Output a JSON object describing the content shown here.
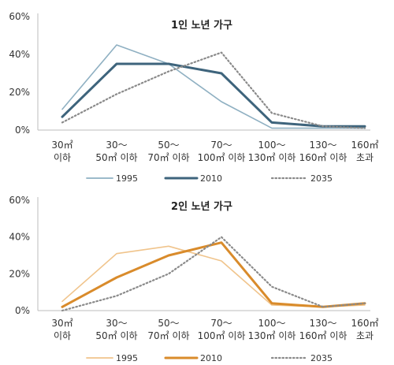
{
  "chart_data": [
    {
      "type": "line",
      "title": "1인 노년 가구",
      "categories": [
        [
          "30㎡",
          "이하"
        ],
        [
          "30～",
          "50㎡ 이하"
        ],
        [
          "50～",
          "70㎡ 이하"
        ],
        [
          "70～",
          "100㎡ 이하"
        ],
        [
          "100～",
          "130㎡ 이하"
        ],
        [
          "130～",
          "160㎡ 이하"
        ],
        [
          "160㎡",
          "초과"
        ]
      ],
      "ylim": [
        0,
        60
      ],
      "yticks": [
        "0%",
        "20%",
        "40%",
        "60%"
      ],
      "grid": false,
      "legend_position": "bottom",
      "series": [
        {
          "name": "1995",
          "values": [
            11,
            45,
            35,
            15,
            1,
            1,
            1
          ],
          "color": "#8fb0c2",
          "style": "solid"
        },
        {
          "name": "2010",
          "values": [
            7,
            35,
            35,
            30,
            4,
            2,
            2
          ],
          "color": "#3e647c",
          "style": "solid"
        },
        {
          "name": "2035",
          "values": [
            4,
            19,
            31,
            41,
            9,
            2,
            1
          ],
          "color": "#8a8a8a",
          "style": "dotted"
        }
      ]
    },
    {
      "type": "line",
      "title": "2인 노년 가구",
      "categories": [
        [
          "30㎡",
          "이하"
        ],
        [
          "30～",
          "50㎡ 이하"
        ],
        [
          "50～",
          "70㎡ 이하"
        ],
        [
          "70～",
          "100㎡ 이하"
        ],
        [
          "100～",
          "130㎡ 이하"
        ],
        [
          "130～",
          "160㎡ 이하"
        ],
        [
          "160㎡",
          "초과"
        ]
      ],
      "ylim": [
        0,
        60
      ],
      "yticks": [
        "0%",
        "20%",
        "40%",
        "60%"
      ],
      "grid": false,
      "legend_position": "bottom",
      "series": [
        {
          "name": "1995",
          "values": [
            5,
            31,
            35,
            27,
            3,
            2,
            3
          ],
          "color": "#f0c48c",
          "style": "solid"
        },
        {
          "name": "2010",
          "values": [
            2,
            18,
            30,
            37,
            4,
            2,
            4
          ],
          "color": "#d98b2b",
          "style": "solid"
        },
        {
          "name": "2035",
          "values": [
            0,
            8,
            20,
            40,
            13,
            2,
            4
          ],
          "color": "#8a8a8a",
          "style": "dotted"
        }
      ]
    }
  ]
}
